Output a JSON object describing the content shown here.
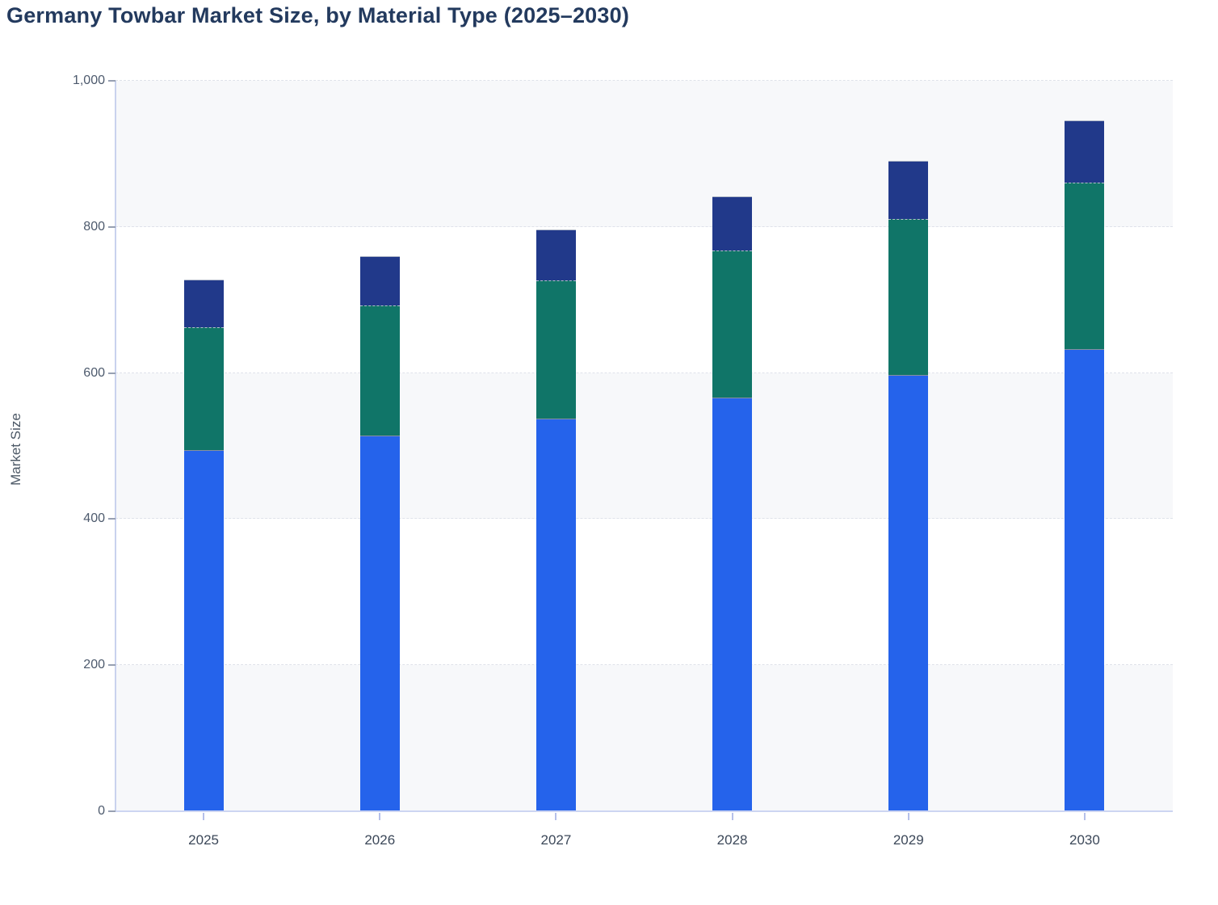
{
  "title": "Germany Towbar Market Size, by Material Type (2025–2030)",
  "y_axis": {
    "label": "Market Size",
    "tick_values": [
      0,
      200,
      400,
      600,
      800,
      1000
    ],
    "tick_labels": [
      "0",
      "200",
      "400",
      "600",
      "800",
      "1,000"
    ]
  },
  "x_axis": {
    "tick_labels": [
      "2025",
      "2026",
      "2027",
      "2028",
      "2029",
      "2030"
    ]
  },
  "colors": {
    "band_shade": "#f7f8fa",
    "gridline": "#dfe2ea",
    "axis_line": "#c9d2ee",
    "title_text": "#233a5e",
    "tick_text": "#4d5a6d"
  },
  "chart_data": {
    "type": "bar",
    "stacked": true,
    "title": "Germany Towbar Market Size, by Material Type (2025–2030)",
    "xlabel": "",
    "ylabel": "Market Size",
    "ylim": [
      0,
      1000
    ],
    "grid": "horizontal-dashed",
    "legend_position": "none",
    "legend_visible": false,
    "categories": [
      "2025",
      "2026",
      "2027",
      "2028",
      "2029",
      "2030"
    ],
    "series": [
      {
        "name": "Bottom segment (blue)",
        "color": "#2563eb",
        "values": [
          494,
          514,
          538,
          566,
          597,
          633
        ]
      },
      {
        "name": "Middle segment (teal)",
        "color": "#107568",
        "values": [
          169,
          179,
          189,
          202,
          214,
          228
        ]
      },
      {
        "name": "Top segment (navy)",
        "color": "#21398a",
        "values": [
          65,
          67,
          70,
          74,
          80,
          85
        ]
      }
    ],
    "stack_totals": [
      728,
      760,
      797,
      842,
      891,
      946
    ]
  }
}
